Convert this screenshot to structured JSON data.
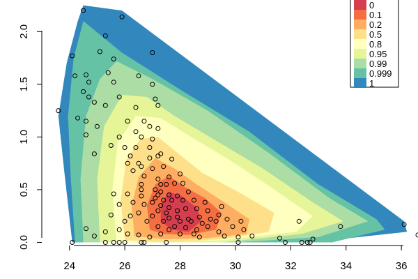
{
  "chart_data": {
    "type": "heatmap",
    "title": "",
    "xlabel": "",
    "ylabel": "",
    "xlim": [
      23.0,
      36.6
    ],
    "ylim": [
      -0.03,
      2.3
    ],
    "x_ticks": [
      24,
      26,
      28,
      30,
      32,
      34,
      36
    ],
    "x_tick_labels": [
      "24",
      "26",
      "28",
      "30",
      "32",
      "34",
      "36"
    ],
    "y_ticks": [
      0.0,
      0.5,
      1.0,
      1.5,
      2.0
    ],
    "y_tick_labels": [
      "0.0",
      "0.5",
      "1.0",
      "1.5",
      "2.0"
    ],
    "grid": false,
    "legend_position": "top-right",
    "levels": [
      {
        "label": "0",
        "color": "#d53e4f"
      },
      {
        "label": "0.1",
        "color": "#f46d43"
      },
      {
        "label": "0.2",
        "color": "#fdae61"
      },
      {
        "label": "0.5",
        "color": "#fee08b"
      },
      {
        "label": "0.8",
        "color": "#ffffbf"
      },
      {
        "label": "0.95",
        "color": "#e6f598"
      },
      {
        "label": "0.99",
        "color": "#abdda4"
      },
      {
        "label": "0.999",
        "color": "#66c2a5"
      },
      {
        "label": "1",
        "color": "#3288bd"
      }
    ],
    "region_boundary": [
      [
        24.1,
        0.0
      ],
      [
        23.8,
        0.7
      ],
      [
        23.6,
        1.2
      ],
      [
        23.9,
        1.7
      ],
      [
        24.3,
        2.1
      ],
      [
        24.5,
        2.25
      ],
      [
        25.9,
        2.2
      ],
      [
        36.1,
        0.2
      ],
      [
        36.2,
        0.1
      ],
      [
        32.7,
        0.0
      ]
    ],
    "contours": [
      {
        "level": "0.999",
        "polygon": [
          [
            24.2,
            0.0
          ],
          [
            24.05,
            0.6
          ],
          [
            23.95,
            1.2
          ],
          [
            24.15,
            1.75
          ],
          [
            24.5,
            2.1
          ],
          [
            25.9,
            1.8
          ],
          [
            28.0,
            1.45
          ],
          [
            30.5,
            1.05
          ],
          [
            33.0,
            0.55
          ],
          [
            35.1,
            0.22
          ],
          [
            35.4,
            0.12
          ],
          [
            33.5,
            0.0
          ]
        ]
      },
      {
        "level": "0.99",
        "polygon": [
          [
            24.5,
            0.0
          ],
          [
            24.4,
            0.6
          ],
          [
            24.6,
            1.2
          ],
          [
            25.1,
            1.55
          ],
          [
            25.7,
            1.72
          ],
          [
            27.0,
            1.55
          ],
          [
            29.0,
            1.25
          ],
          [
            31.2,
            0.85
          ],
          [
            33.4,
            0.42
          ],
          [
            34.8,
            0.2
          ],
          [
            33.0,
            0.05
          ],
          [
            30.0,
            0.0
          ]
        ]
      },
      {
        "level": "0.95",
        "polygon": [
          [
            25.1,
            0.0
          ],
          [
            25.0,
            0.6
          ],
          [
            25.25,
            1.1
          ],
          [
            25.9,
            1.4
          ],
          [
            26.8,
            1.38
          ],
          [
            27.8,
            1.2
          ],
          [
            29.2,
            0.98
          ],
          [
            31.0,
            0.7
          ],
          [
            32.8,
            0.38
          ],
          [
            33.9,
            0.2
          ],
          [
            32.4,
            0.08
          ],
          [
            29.5,
            0.0
          ]
        ]
      },
      {
        "level": "0.8",
        "polygon": [
          [
            25.7,
            0.0
          ],
          [
            25.55,
            0.5
          ],
          [
            25.75,
            0.95
          ],
          [
            26.4,
            1.2
          ],
          [
            27.3,
            1.18
          ],
          [
            28.4,
            1.0
          ],
          [
            29.8,
            0.78
          ],
          [
            31.3,
            0.52
          ],
          [
            32.8,
            0.25
          ],
          [
            32.2,
            0.1
          ],
          [
            29.5,
            0.02
          ]
        ]
      },
      {
        "level": "0.5",
        "polygon": [
          [
            26.0,
            0.02
          ],
          [
            25.85,
            0.4
          ],
          [
            26.05,
            0.78
          ],
          [
            26.55,
            0.98
          ],
          [
            27.2,
            1.0
          ],
          [
            27.9,
            0.85
          ],
          [
            28.8,
            0.66
          ],
          [
            30.1,
            0.48
          ],
          [
            31.4,
            0.28
          ],
          [
            31.2,
            0.1
          ],
          [
            29.5,
            0.03
          ],
          [
            27.5,
            0.0
          ]
        ]
      },
      {
        "level": "0.2",
        "polygon": [
          [
            26.35,
            0.06
          ],
          [
            26.25,
            0.35
          ],
          [
            26.5,
            0.62
          ],
          [
            27.1,
            0.8
          ],
          [
            27.8,
            0.7
          ],
          [
            28.6,
            0.55
          ],
          [
            29.6,
            0.38
          ],
          [
            30.5,
            0.22
          ],
          [
            30.4,
            0.08
          ],
          [
            29.0,
            0.04
          ],
          [
            27.4,
            0.03
          ]
        ]
      },
      {
        "level": "0.1",
        "polygon": [
          [
            26.9,
            0.12
          ],
          [
            26.8,
            0.35
          ],
          [
            27.1,
            0.55
          ],
          [
            27.6,
            0.63
          ],
          [
            28.2,
            0.52
          ],
          [
            28.9,
            0.42
          ],
          [
            29.5,
            0.28
          ],
          [
            29.3,
            0.12
          ],
          [
            28.3,
            0.07
          ],
          [
            27.4,
            0.08
          ]
        ]
      },
      {
        "level": "0",
        "polygon": [
          [
            27.3,
            0.2
          ],
          [
            27.3,
            0.36
          ],
          [
            27.6,
            0.48
          ],
          [
            28.05,
            0.44
          ],
          [
            28.6,
            0.33
          ],
          [
            28.75,
            0.2
          ],
          [
            28.3,
            0.1
          ],
          [
            27.7,
            0.12
          ]
        ]
      }
    ],
    "points": [
      [
        24.5,
        2.2
      ],
      [
        25.9,
        2.14
      ],
      [
        24.1,
        1.77
      ],
      [
        25.3,
        1.96
      ],
      [
        25.1,
        1.81
      ],
      [
        25.6,
        1.74
      ],
      [
        27.0,
        1.8
      ],
      [
        24.2,
        1.58
      ],
      [
        24.6,
        1.59
      ],
      [
        25.4,
        1.61
      ],
      [
        24.7,
        1.52
      ],
      [
        25.6,
        1.52
      ],
      [
        26.5,
        1.58
      ],
      [
        27.0,
        1.5
      ],
      [
        24.5,
        1.43
      ],
      [
        24.7,
        1.38
      ],
      [
        24.9,
        1.33
      ],
      [
        25.8,
        1.38
      ],
      [
        25.3,
        1.3
      ],
      [
        27.1,
        1.36
      ],
      [
        23.6,
        1.25
      ],
      [
        24.3,
        1.18
      ],
      [
        24.6,
        1.15
      ],
      [
        26.4,
        1.28
      ],
      [
        27.2,
        1.3
      ],
      [
        25.0,
        1.1
      ],
      [
        26.1,
        1.15
      ],
      [
        26.7,
        1.15
      ],
      [
        24.6,
        1.02
      ],
      [
        26.4,
        1.05
      ],
      [
        26.6,
        1.0
      ],
      [
        25.8,
        1.0
      ],
      [
        26.9,
        1.1
      ],
      [
        27.2,
        1.08
      ],
      [
        27.0,
        0.98
      ],
      [
        25.5,
        0.92
      ],
      [
        26.0,
        0.9
      ],
      [
        26.4,
        0.9
      ],
      [
        26.9,
        0.9
      ],
      [
        26.2,
        0.82
      ],
      [
        27.3,
        0.84
      ],
      [
        24.9,
        0.84
      ],
      [
        26.1,
        0.75
      ],
      [
        26.5,
        0.75
      ],
      [
        26.9,
        0.8
      ],
      [
        27.2,
        0.82
      ],
      [
        27.7,
        0.79
      ],
      [
        26.3,
        0.68
      ],
      [
        26.6,
        0.72
      ],
      [
        27.0,
        0.7
      ],
      [
        27.4,
        0.72
      ],
      [
        28.0,
        0.65
      ],
      [
        26.7,
        0.63
      ],
      [
        27.2,
        0.6
      ],
      [
        27.6,
        0.62
      ],
      [
        27.3,
        0.55
      ],
      [
        27.5,
        0.55
      ],
      [
        27.8,
        0.56
      ],
      [
        28.1,
        0.56
      ],
      [
        26.6,
        0.55
      ],
      [
        27.1,
        0.5
      ],
      [
        27.3,
        0.48
      ],
      [
        27.6,
        0.45
      ],
      [
        27.9,
        0.44
      ],
      [
        28.3,
        0.48
      ],
      [
        26.6,
        0.5
      ],
      [
        27.2,
        0.45
      ],
      [
        27.1,
        0.42
      ],
      [
        27.4,
        0.4
      ],
      [
        27.7,
        0.4
      ],
      [
        28.1,
        0.4
      ],
      [
        28.5,
        0.4
      ],
      [
        28.9,
        0.38
      ],
      [
        27.0,
        0.38
      ],
      [
        27.3,
        0.35
      ],
      [
        27.6,
        0.33
      ],
      [
        27.9,
        0.3
      ],
      [
        28.2,
        0.32
      ],
      [
        28.6,
        0.32
      ],
      [
        29.0,
        0.3
      ],
      [
        29.5,
        0.34
      ],
      [
        25.6,
        0.46
      ],
      [
        26.1,
        0.46
      ],
      [
        26.6,
        0.44
      ],
      [
        27.5,
        0.28
      ],
      [
        27.9,
        0.24
      ],
      [
        28.3,
        0.22
      ],
      [
        28.7,
        0.24
      ],
      [
        29.1,
        0.22
      ],
      [
        29.4,
        0.26
      ],
      [
        25.8,
        0.36
      ],
      [
        26.3,
        0.38
      ],
      [
        26.7,
        0.36
      ],
      [
        27.2,
        0.3
      ],
      [
        27.6,
        0.23
      ],
      [
        28.0,
        0.2
      ],
      [
        28.4,
        0.2
      ],
      [
        28.8,
        0.18
      ],
      [
        29.3,
        0.2
      ],
      [
        29.7,
        0.22
      ],
      [
        30.2,
        0.2
      ],
      [
        26.2,
        0.25
      ],
      [
        26.5,
        0.28
      ],
      [
        27.0,
        0.25
      ],
      [
        27.4,
        0.2
      ],
      [
        27.8,
        0.15
      ],
      [
        28.2,
        0.14
      ],
      [
        28.6,
        0.12
      ],
      [
        29.0,
        0.15
      ],
      [
        29.9,
        0.15
      ],
      [
        30.3,
        0.12
      ],
      [
        25.5,
        0.26
      ],
      [
        26.0,
        0.2
      ],
      [
        26.8,
        0.2
      ],
      [
        27.2,
        0.15
      ],
      [
        27.6,
        0.12
      ],
      [
        28.0,
        0.08
      ],
      [
        28.5,
        0.08
      ],
      [
        29.4,
        0.1
      ],
      [
        30.1,
        0.05
      ],
      [
        24.6,
        0.13
      ],
      [
        24.9,
        0.06
      ],
      [
        25.3,
        0.1
      ],
      [
        25.8,
        0.12
      ],
      [
        26.1,
        0.08
      ],
      [
        26.5,
        0.07
      ],
      [
        26.9,
        0.05
      ],
      [
        27.3,
        0.08
      ],
      [
        28.7,
        0.05
      ],
      [
        29.6,
        0.06
      ],
      [
        25.6,
        0.0
      ],
      [
        25.8,
        0.0
      ],
      [
        26.0,
        0.0
      ],
      [
        26.6,
        0.0
      ],
      [
        26.7,
        0.0
      ],
      [
        24.1,
        0.0
      ],
      [
        30.1,
        0.0
      ],
      [
        30.6,
        0.06
      ],
      [
        31.6,
        0.04
      ],
      [
        31.8,
        0.0
      ],
      [
        32.3,
        0.2
      ],
      [
        32.4,
        0.0
      ],
      [
        32.6,
        0.0
      ],
      [
        32.7,
        0.0
      ],
      [
        32.8,
        0.03
      ],
      [
        33.8,
        0.15
      ],
      [
        36.1,
        0.17
      ],
      [
        36.6,
        0.07
      ],
      [
        25.3,
        0.0
      ],
      [
        27.5,
        0.0
      ]
    ]
  }
}
